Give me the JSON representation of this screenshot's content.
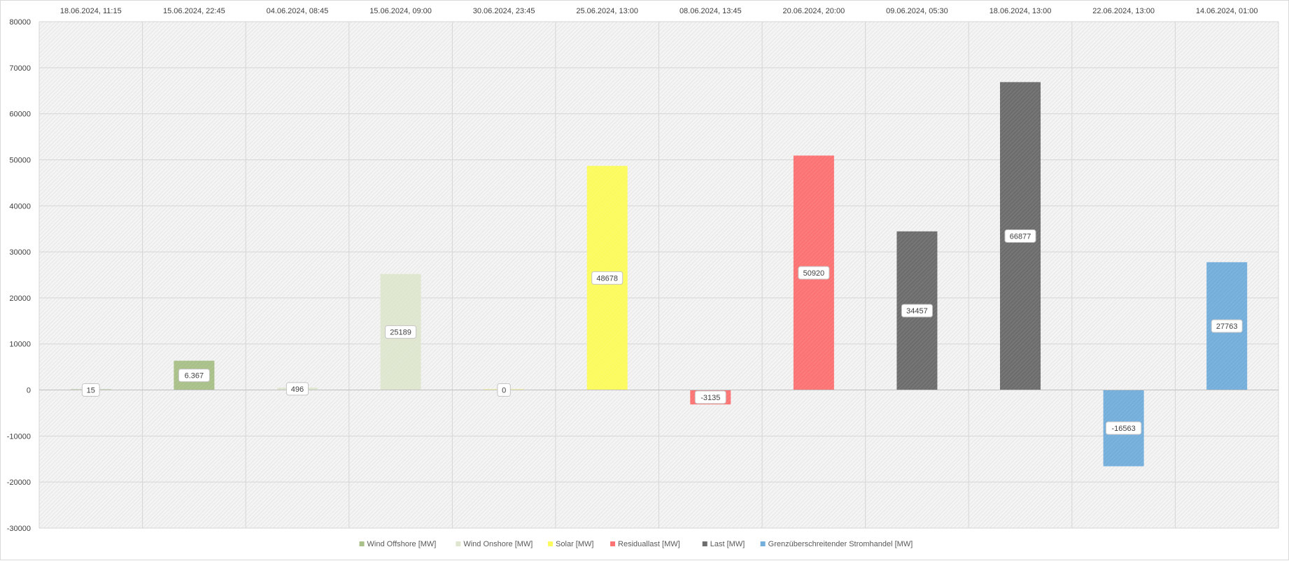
{
  "chart_data": {
    "type": "bar",
    "title": "",
    "xlabel": "",
    "ylabel": "",
    "ylim": [
      -30000,
      80000
    ],
    "ytick_step": 10000,
    "grid": true,
    "legend_position": "bottom",
    "categories": [
      "18.06.2024, 11:15",
      "15.06.2024, 22:45",
      "04.06.2024, 08:45",
      "15.06.2024, 09:00",
      "30.06.2024, 23:45",
      "25.06.2024, 13:00",
      "08.06.2024, 13:45",
      "20.06.2024, 20:00",
      "09.06.2024, 05:30",
      "18.06.2024, 13:00",
      "22.06.2024, 13:00",
      "14.06.2024, 01:00"
    ],
    "bars": [
      {
        "value": 15,
        "label": "15",
        "series": 0
      },
      {
        "value": 6367,
        "label": "6.367",
        "series": 0
      },
      {
        "value": 496,
        "label": "496",
        "series": 1
      },
      {
        "value": 25189,
        "label": "25189",
        "series": 1
      },
      {
        "value": 0,
        "label": "0",
        "series": 2
      },
      {
        "value": 48678,
        "label": "48678",
        "series": 2
      },
      {
        "value": -3135,
        "label": "-3135",
        "series": 3
      },
      {
        "value": 50920,
        "label": "50920",
        "series": 3
      },
      {
        "value": 34457,
        "label": "34457",
        "series": 4
      },
      {
        "value": 66877,
        "label": "66877",
        "series": 4
      },
      {
        "value": -16563,
        "label": "-16563",
        "series": 5
      },
      {
        "value": 27763,
        "label": "27763",
        "series": 5
      }
    ],
    "series": [
      {
        "name": "Wind Offshore [MW]",
        "color": "#a9c089"
      },
      {
        "name": "Wind Onshore [MW]",
        "color": "#dfe6cf"
      },
      {
        "name": "Solar [MW]",
        "color": "#fbfb5e"
      },
      {
        "name": "Residuallast [MW]",
        "color": "#fc7373"
      },
      {
        "name": "Last [MW]",
        "color": "#6d6d6d"
      },
      {
        "name": "Grenzüberschreitender Stromhandel [MW]",
        "color": "#74aedb"
      }
    ]
  }
}
